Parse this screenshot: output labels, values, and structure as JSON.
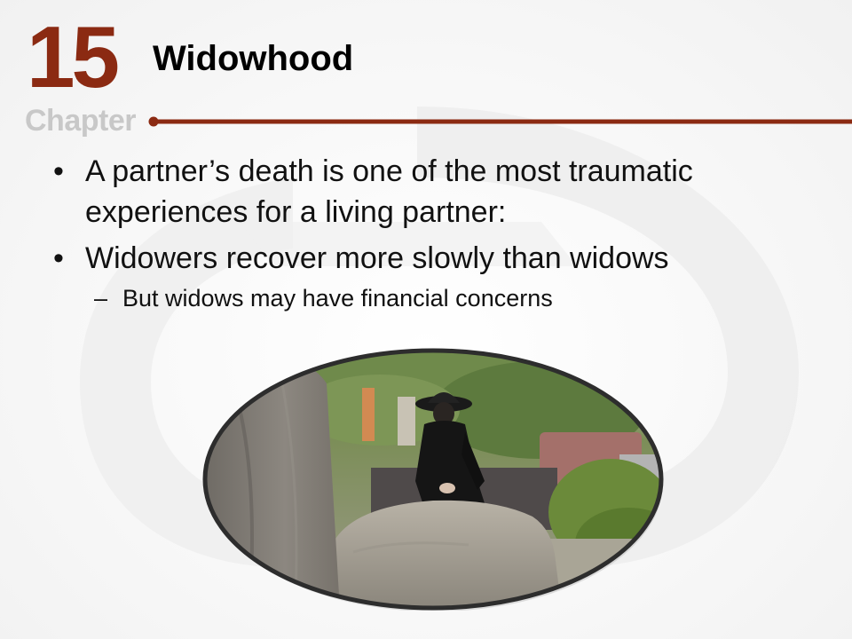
{
  "header": {
    "chapter_number": "15",
    "chapter_word": "Chapter",
    "title": "Widowhood"
  },
  "bullets": [
    {
      "text": "A partner’s death is one of the most traumatic experiences for a living partner:"
    },
    {
      "text": "Widowers recover more slowly than widows",
      "sub": [
        {
          "text": "But widows may have financial concerns"
        }
      ]
    }
  ],
  "markers": {
    "bullet": "•",
    "dash": "–"
  },
  "image": {
    "description_icon": "widow-at-grave-photo"
  },
  "colors": {
    "accent": "#8b2a12",
    "chapter_gray": "#c8c8c8",
    "text": "#111111"
  }
}
